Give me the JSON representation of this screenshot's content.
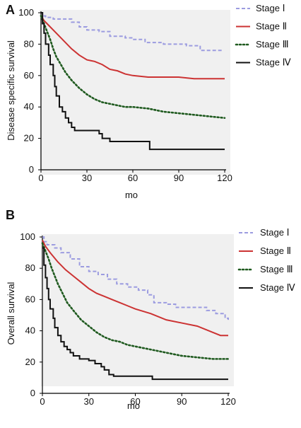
{
  "chart_data": [
    {
      "panel_label": "A",
      "type": "line",
      "ylabel": "Disease specific survival",
      "xlabel": "mo",
      "xlim": [
        0,
        120
      ],
      "ylim": [
        0,
        100
      ],
      "x_ticks": [
        0,
        30,
        60,
        90,
        120
      ],
      "y_ticks": [
        0,
        20,
        40,
        60,
        80,
        100
      ],
      "legend_position": "top-right",
      "series": [
        {
          "name": "Stage Ⅰ",
          "color": "#9c9ce0",
          "style": "dashed",
          "step": true,
          "points": [
            [
              0,
              100
            ],
            [
              1,
              98
            ],
            [
              3,
              97
            ],
            [
              8,
              96
            ],
            [
              15,
              96
            ],
            [
              20,
              94
            ],
            [
              25,
              91
            ],
            [
              30,
              89
            ],
            [
              38,
              88
            ],
            [
              45,
              85
            ],
            [
              55,
              84
            ],
            [
              60,
              83
            ],
            [
              68,
              81
            ],
            [
              80,
              80
            ],
            [
              95,
              79
            ],
            [
              104,
              76
            ],
            [
              108,
              76
            ],
            [
              118,
              76
            ]
          ]
        },
        {
          "name": "Stage Ⅱ",
          "color": "#cc3333",
          "style": "solid",
          "step": false,
          "points": [
            [
              0,
              98
            ],
            [
              2,
              95
            ],
            [
              5,
              92
            ],
            [
              10,
              87
            ],
            [
              15,
              82
            ],
            [
              20,
              77
            ],
            [
              25,
              73
            ],
            [
              30,
              70
            ],
            [
              35,
              69
            ],
            [
              40,
              67
            ],
            [
              45,
              64
            ],
            [
              50,
              63
            ],
            [
              55,
              61
            ],
            [
              60,
              60
            ],
            [
              70,
              59
            ],
            [
              80,
              59
            ],
            [
              90,
              59
            ],
            [
              100,
              58
            ],
            [
              110,
              58
            ],
            [
              120,
              58
            ]
          ]
        },
        {
          "name": "Stage Ⅲ",
          "color": "#1f5a1f",
          "style": "dotted",
          "step": false,
          "points": [
            [
              0,
              98
            ],
            [
              2,
              93
            ],
            [
              4,
              88
            ],
            [
              6,
              83
            ],
            [
              8,
              77
            ],
            [
              10,
              72
            ],
            [
              13,
              67
            ],
            [
              16,
              62
            ],
            [
              20,
              57
            ],
            [
              25,
              52
            ],
            [
              30,
              48
            ],
            [
              35,
              45
            ],
            [
              40,
              43
            ],
            [
              45,
              42
            ],
            [
              50,
              41
            ],
            [
              55,
              40
            ],
            [
              60,
              40
            ],
            [
              70,
              39
            ],
            [
              80,
              37
            ],
            [
              90,
              36
            ],
            [
              100,
              35
            ],
            [
              110,
              34
            ],
            [
              120,
              33
            ]
          ]
        },
        {
          "name": "Stage Ⅳ",
          "color": "#111111",
          "style": "solid",
          "step": true,
          "points": [
            [
              0,
              100
            ],
            [
              1,
              93
            ],
            [
              2,
              87
            ],
            [
              3,
              80
            ],
            [
              5,
              73
            ],
            [
              6,
              67
            ],
            [
              8,
              60
            ],
            [
              9,
              53
            ],
            [
              10,
              47
            ],
            [
              12,
              40
            ],
            [
              14,
              37
            ],
            [
              16,
              33
            ],
            [
              18,
              30
            ],
            [
              20,
              27
            ],
            [
              22,
              25
            ],
            [
              38,
              23
            ],
            [
              40,
              20
            ],
            [
              44,
              20
            ],
            [
              45,
              18
            ],
            [
              70,
              18
            ],
            [
              71,
              13
            ],
            [
              120,
              13
            ]
          ]
        }
      ]
    },
    {
      "panel_label": "B",
      "type": "line",
      "ylabel": "Overall survival",
      "xlabel": "mo",
      "xlim": [
        0,
        120
      ],
      "ylim": [
        0,
        100
      ],
      "x_ticks": [
        0,
        30,
        60,
        90,
        120
      ],
      "y_ticks": [
        0,
        20,
        40,
        60,
        80,
        100
      ],
      "legend_position": "top-right",
      "series": [
        {
          "name": "Stage Ⅰ",
          "color": "#9c9ce0",
          "style": "dashed",
          "step": true,
          "points": [
            [
              0,
              100
            ],
            [
              1,
              97
            ],
            [
              3,
              95
            ],
            [
              8,
              93
            ],
            [
              12,
              90
            ],
            [
              18,
              86
            ],
            [
              24,
              81
            ],
            [
              30,
              78
            ],
            [
              36,
              76
            ],
            [
              42,
              73
            ],
            [
              48,
              70
            ],
            [
              55,
              68
            ],
            [
              62,
              66
            ],
            [
              68,
              63
            ],
            [
              72,
              58
            ],
            [
              80,
              57
            ],
            [
              86,
              55
            ],
            [
              100,
              55
            ],
            [
              106,
              53
            ],
            [
              112,
              51
            ],
            [
              118,
              48
            ],
            [
              120,
              47
            ]
          ]
        },
        {
          "name": "Stage Ⅱ",
          "color": "#cc3333",
          "style": "solid",
          "step": false,
          "points": [
            [
              0,
              98
            ],
            [
              2,
              94
            ],
            [
              5,
              90
            ],
            [
              10,
              84
            ],
            [
              15,
              79
            ],
            [
              20,
              75
            ],
            [
              25,
              71
            ],
            [
              30,
              67
            ],
            [
              35,
              64
            ],
            [
              40,
              62
            ],
            [
              45,
              60
            ],
            [
              50,
              58
            ],
            [
              55,
              56
            ],
            [
              60,
              54
            ],
            [
              70,
              51
            ],
            [
              80,
              47
            ],
            [
              90,
              45
            ],
            [
              100,
              43
            ],
            [
              110,
              39
            ],
            [
              115,
              37
            ],
            [
              120,
              37
            ]
          ]
        },
        {
          "name": "Stage Ⅲ",
          "color": "#1f5a1f",
          "style": "dotted",
          "step": false,
          "points": [
            [
              0,
              96
            ],
            [
              2,
              91
            ],
            [
              4,
              86
            ],
            [
              6,
              80
            ],
            [
              8,
              75
            ],
            [
              10,
              70
            ],
            [
              13,
              64
            ],
            [
              16,
              58
            ],
            [
              20,
              53
            ],
            [
              25,
              47
            ],
            [
              30,
              43
            ],
            [
              35,
              39
            ],
            [
              40,
              36
            ],
            [
              45,
              34
            ],
            [
              50,
              33
            ],
            [
              55,
              31
            ],
            [
              60,
              30
            ],
            [
              70,
              28
            ],
            [
              80,
              26
            ],
            [
              90,
              24
            ],
            [
              100,
              23
            ],
            [
              110,
              22
            ],
            [
              120,
              22
            ]
          ]
        },
        {
          "name": "Stage Ⅳ",
          "color": "#111111",
          "style": "solid",
          "step": true,
          "points": [
            [
              0,
              93
            ],
            [
              1,
              82
            ],
            [
              2,
              74
            ],
            [
              3,
              67
            ],
            [
              4,
              60
            ],
            [
              5,
              54
            ],
            [
              7,
              48
            ],
            [
              8,
              42
            ],
            [
              10,
              37
            ],
            [
              12,
              33
            ],
            [
              14,
              30
            ],
            [
              16,
              28
            ],
            [
              18,
              26
            ],
            [
              20,
              24
            ],
            [
              24,
              22
            ],
            [
              30,
              21
            ],
            [
              34,
              19
            ],
            [
              38,
              17
            ],
            [
              40,
              15
            ],
            [
              43,
              12
            ],
            [
              46,
              11
            ],
            [
              70,
              11
            ],
            [
              71,
              9
            ],
            [
              120,
              9
            ]
          ]
        }
      ]
    }
  ]
}
